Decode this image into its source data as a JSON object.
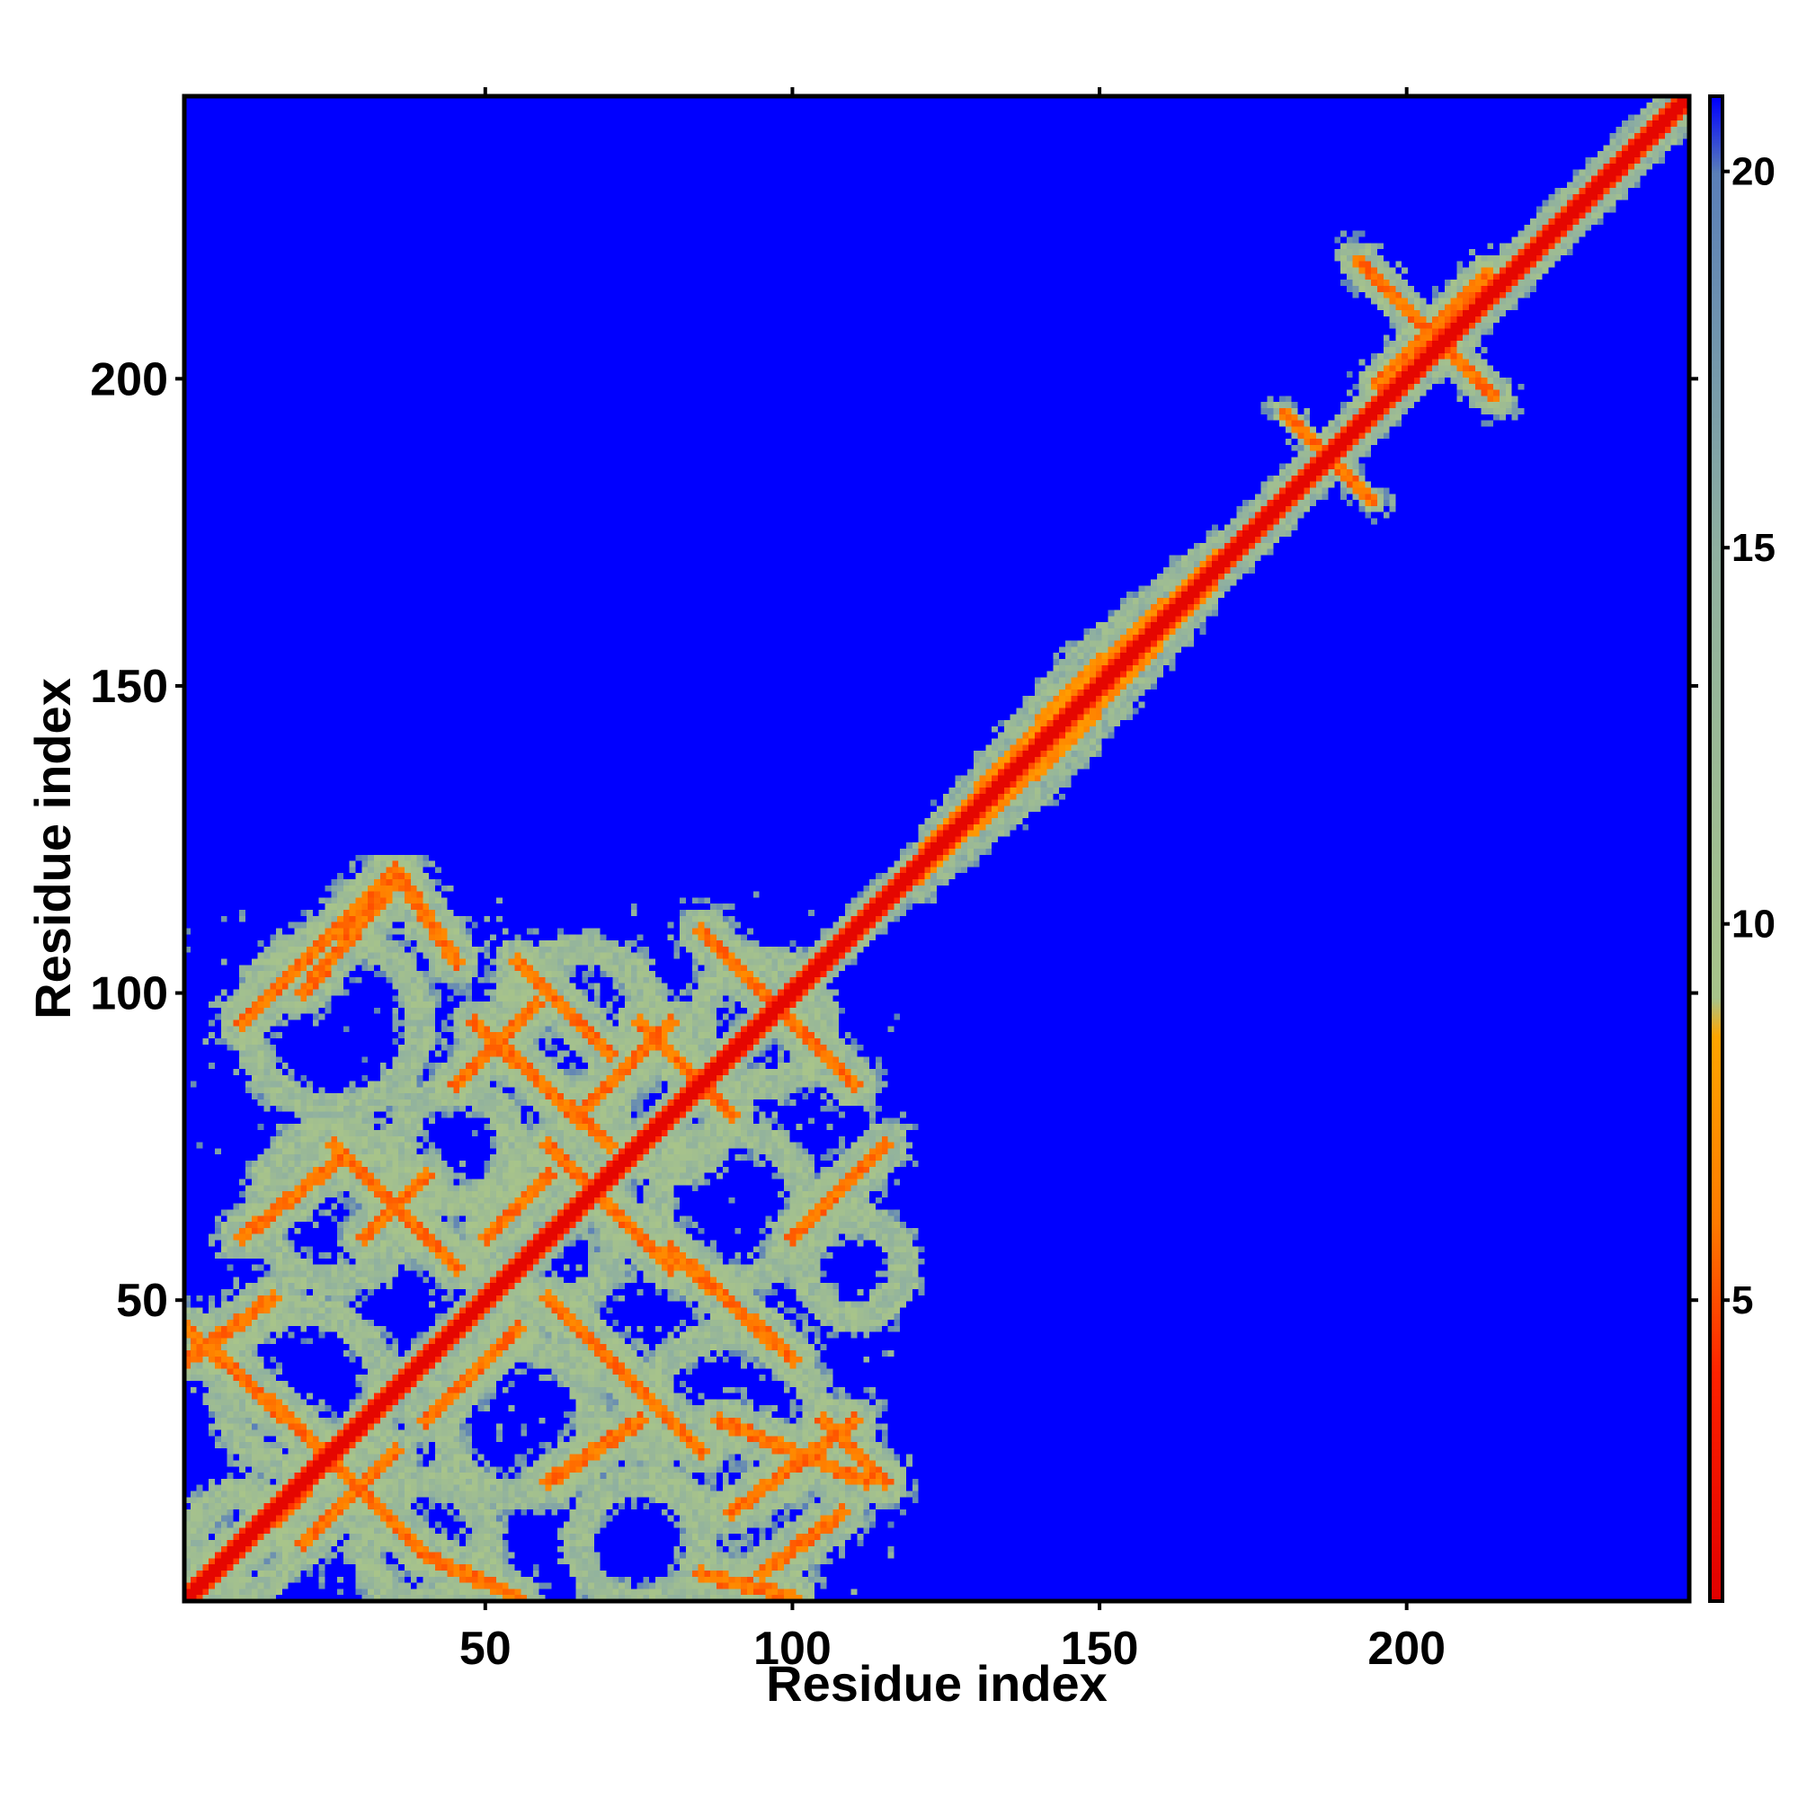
{
  "chart_data": {
    "type": "heatmap",
    "title": "",
    "xlabel": "Residue index",
    "ylabel": "Residue index",
    "x_range": [
      1,
      246
    ],
    "y_range": [
      1,
      246
    ],
    "x_ticks": [
      "50",
      "100",
      "150",
      "200"
    ],
    "y_ticks": [
      "50",
      "100",
      "150",
      "200"
    ],
    "x_tick_values": [
      50,
      100,
      150,
      200
    ],
    "y_tick_values": [
      50,
      100,
      150,
      200
    ],
    "colorbar": {
      "range": [
        1,
        21
      ],
      "ticks": [
        "5",
        "10",
        "15",
        "20"
      ],
      "tick_values": [
        5,
        10,
        15,
        20
      ],
      "colors": [
        {
          "value": 1,
          "color": "#e00000"
        },
        {
          "value": 4,
          "color": "#ff2200"
        },
        {
          "value": 6,
          "color": "#ff7a00"
        },
        {
          "value": 8.5,
          "color": "#ffa500"
        },
        {
          "value": 9,
          "color": "#a8c48a"
        },
        {
          "value": 15,
          "color": "#8fb0a0"
        },
        {
          "value": 20,
          "color": "#5a7fb8"
        },
        {
          "value": 21,
          "color": "#0000ff"
        }
      ]
    },
    "background_value": 21,
    "background_color": "#0000ff",
    "structure": {
      "diagonal": {
        "from": 1,
        "to": 246
      },
      "contacts": [
        {
          "x": [
            1,
            120
          ],
          "y": [
            1,
            120
          ],
          "description": "dense beta-sheet contact lattice"
        },
        {
          "x": [
            120,
            170
          ],
          "y": [
            120,
            170
          ],
          "description": "helical broadening near diagonal"
        },
        {
          "x": [
            190,
            215
          ],
          "y": [
            190,
            225
          ],
          "description": "cross-shaped contact"
        }
      ]
    }
  }
}
